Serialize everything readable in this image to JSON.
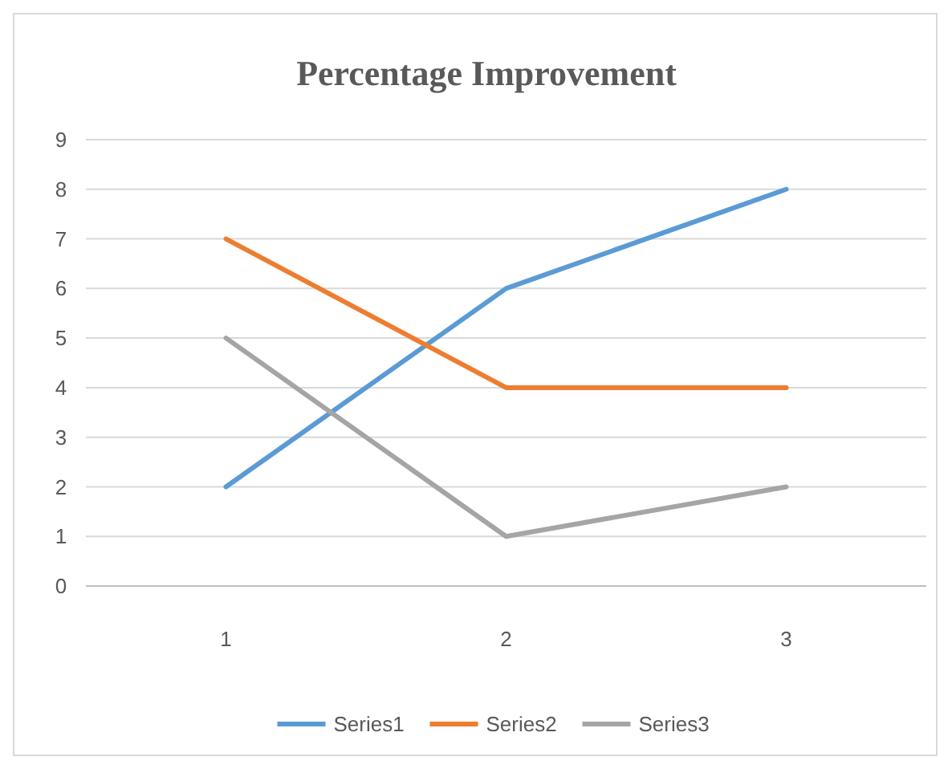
{
  "chart_data": {
    "type": "line",
    "title": "Percentage Improvement",
    "categories": [
      "1",
      "2",
      "3"
    ],
    "series": [
      {
        "name": "Series1",
        "color": "#5b9bd5",
        "values": [
          2,
          6,
          8
        ]
      },
      {
        "name": "Series2",
        "color": "#ed7d31",
        "values": [
          7,
          4,
          4
        ]
      },
      {
        "name": "Series3",
        "color": "#a5a5a5",
        "values": [
          5,
          1,
          2
        ]
      }
    ],
    "ylim": [
      0,
      9
    ],
    "yticks": [
      0,
      1,
      2,
      3,
      4,
      5,
      6,
      7,
      8,
      9
    ],
    "grid": "y",
    "legend": "bottom",
    "marker": "none",
    "line_style": "solid"
  }
}
